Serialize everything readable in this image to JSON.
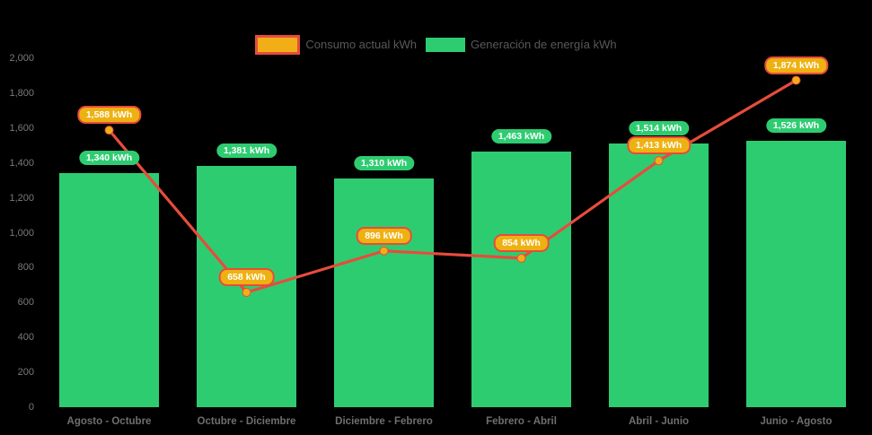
{
  "colors": {
    "background": "#000000",
    "bar_green": "#2ecc71",
    "line_red": "#e74c3c",
    "marker_orange": "#f2ae17",
    "consumption_pill_fill": "#eeb112",
    "consumption_pill_border": "#e74c3c",
    "generation_pill_fill": "#2ecc71",
    "pill_text": "#ffffff",
    "axis_text": "#7a7a7a",
    "x_axis_text": "#6f6f6f",
    "legend_text": "#595959"
  },
  "chart_data": {
    "type": "bar+line",
    "categories": [
      "Agosto - Octubre",
      "Octubre - Diciembre",
      "Diciembre - Febrero",
      "Febrero - Abril",
      "Abril - Junio",
      "Junio - Agosto"
    ],
    "series": [
      {
        "name": "Consumo actual kWh",
        "type": "line",
        "values": [
          1588,
          658,
          896,
          854,
          1413,
          1874
        ],
        "labels": [
          "1,588 kWh",
          "658 kWh",
          "896 kWh",
          "854 kWh",
          "1,413 kWh",
          "1,874 kWh"
        ]
      },
      {
        "name": "Generación de energía kWh",
        "type": "bar",
        "values": [
          1340,
          1381,
          1310,
          1463,
          1514,
          1526
        ],
        "labels": [
          "1,340 kWh",
          "1,381 kWh",
          "1,310 kWh",
          "1,463 kWh",
          "1,514 kWh",
          "1,526 kWh"
        ]
      }
    ],
    "ylim": [
      0,
      2000
    ],
    "ytick_step": 200,
    "ytick_labels": [
      "0",
      "200",
      "400",
      "600",
      "800",
      "1,000",
      "1,200",
      "1,400",
      "1,600",
      "1,800",
      "2,000"
    ],
    "grid": false,
    "legend_position": "top-center"
  }
}
